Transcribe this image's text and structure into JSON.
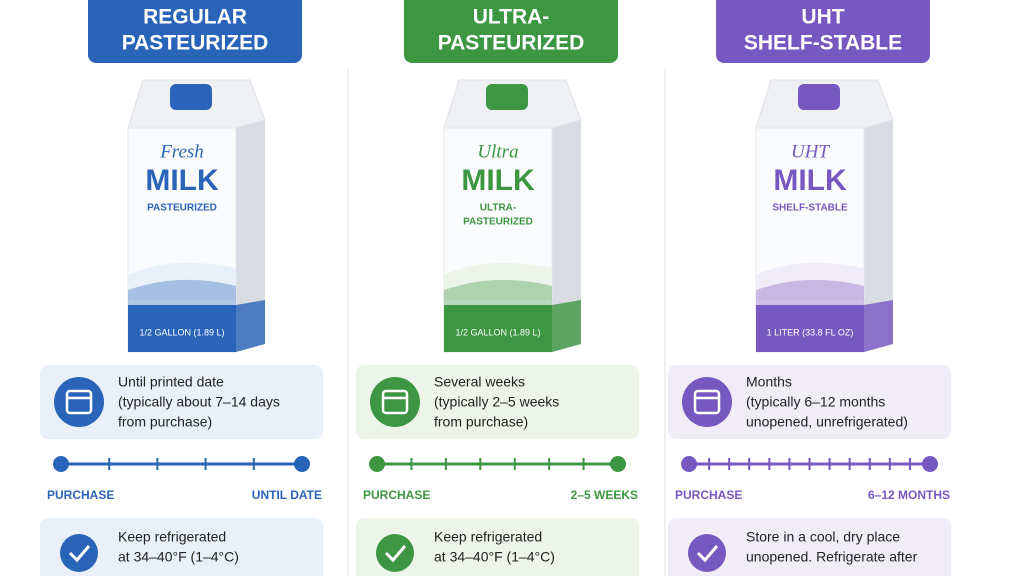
{
  "columns": [
    {
      "color": "#2a64b8",
      "tint": "#e9f0fa",
      "header": [
        "REGULAR",
        "PASTEURIZED"
      ],
      "carton": {
        "script": "Fresh",
        "name": "MILK",
        "subtitle": [
          "PASTEURIZED"
        ],
        "size": "1/2 GALLON (1.89 L)"
      },
      "shelf_life": [
        "Until printed date",
        "(typically about 7–14 days",
        "from purchase)"
      ],
      "timeline": {
        "start": "PURCHASE",
        "end": "UNTIL DATE"
      },
      "storage": [
        "Keep refrigerated",
        "at 34–40°F (1–4°C)"
      ]
    },
    {
      "color": "#3d9642",
      "tint": "#edf5ea",
      "header": [
        "ULTRA-",
        "PASTEURIZED"
      ],
      "carton": {
        "script": "Ultra",
        "name": "MILK",
        "subtitle": [
          "ULTRA-",
          "PASTEURIZED"
        ],
        "size": "1/2 GALLON (1.89 L)"
      },
      "shelf_life": [
        "Several weeks",
        "(typically 2–5 weeks",
        "from purchase)"
      ],
      "timeline": {
        "start": "PURCHASE",
        "end": "2–5 WEEKS"
      },
      "storage": [
        "Keep refrigerated",
        "at 34–40°F (1–4°C)"
      ]
    },
    {
      "color": "#7758c0",
      "tint": "#f1edf8",
      "header": [
        "UHT",
        "SHELF-STABLE"
      ],
      "carton": {
        "script": "UHT",
        "name": "MILK",
        "subtitle": [
          "SHELF-STABLE"
        ],
        "size": "1 LITER (33.8 FL OZ)"
      },
      "shelf_life": [
        "Months",
        "(typically 6–12 months",
        "unopened, unrefrigerated)"
      ],
      "timeline": {
        "start": "PURCHASE",
        "end": "6–12 MONTHS"
      },
      "storage": [
        "Store in a cool, dry place",
        "unopened. Refrigerate after"
      ]
    }
  ]
}
